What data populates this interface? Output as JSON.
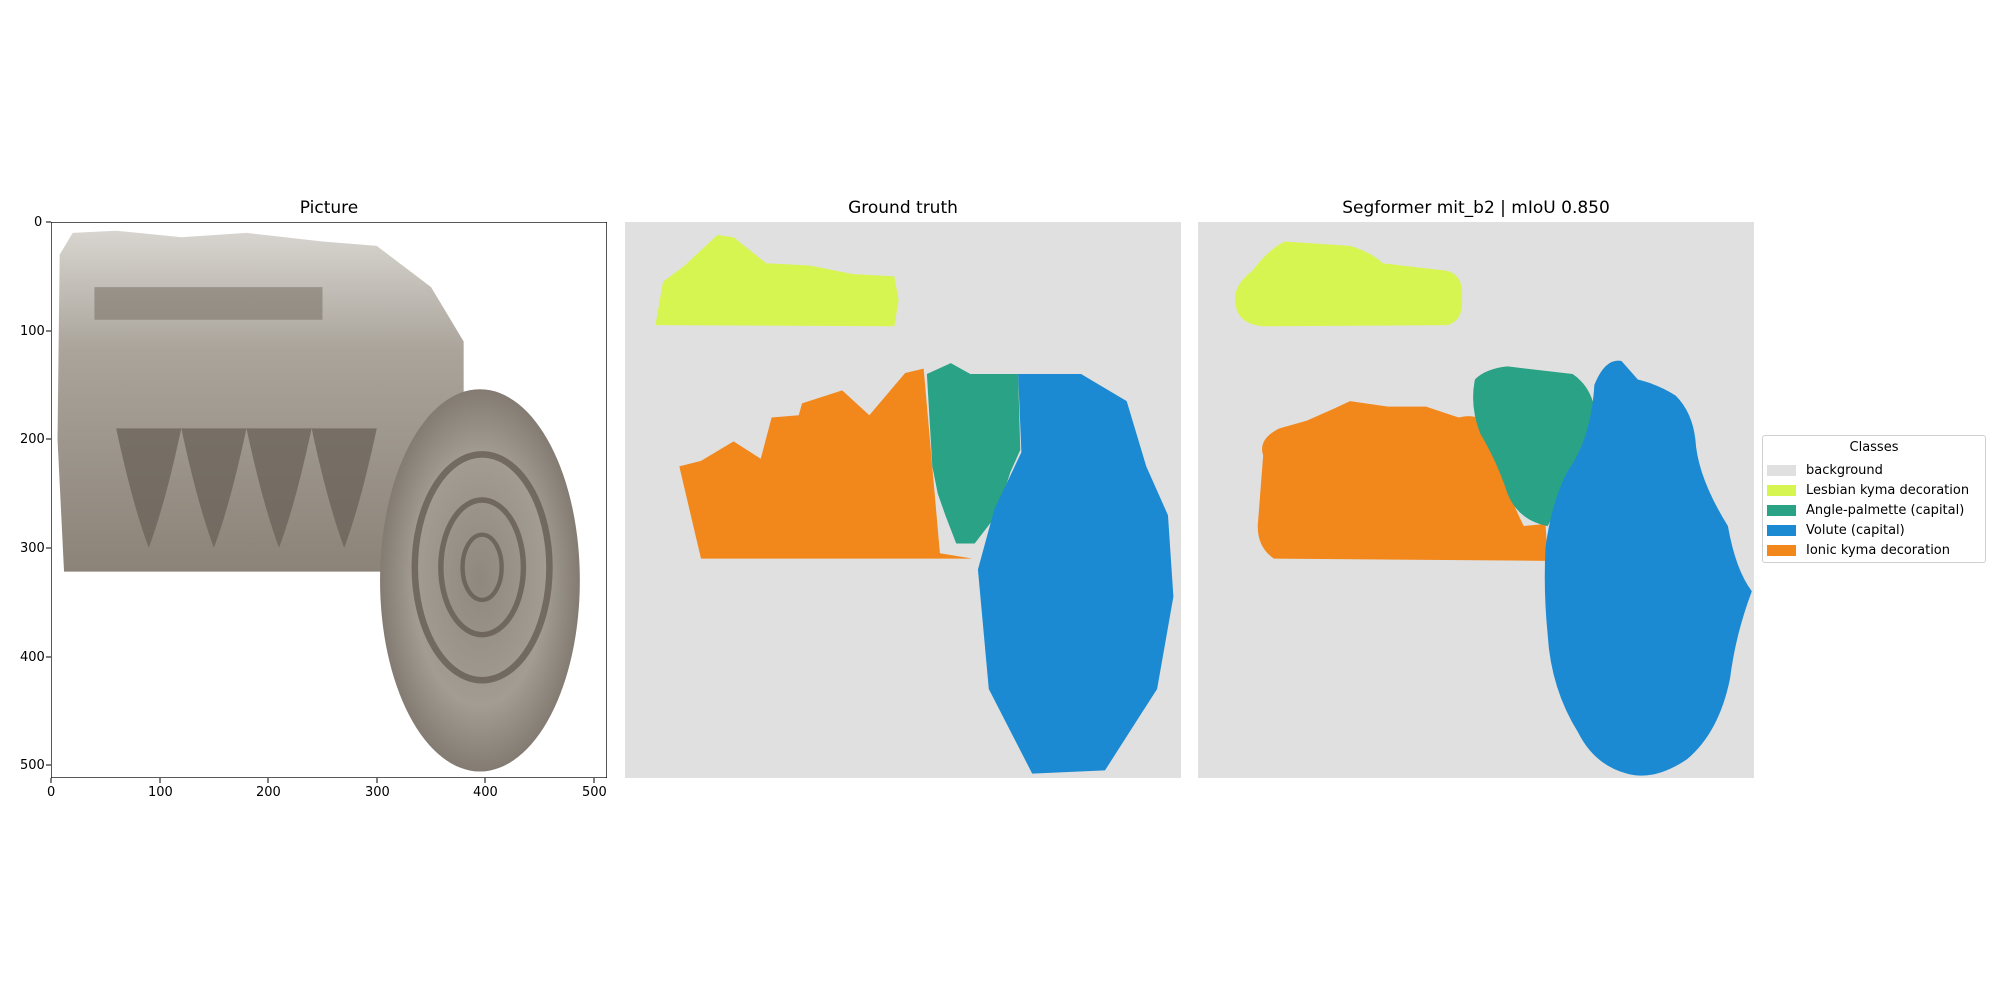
{
  "panels": {
    "picture": {
      "title": "Picture"
    },
    "ground_truth": {
      "title": "Ground truth"
    },
    "prediction": {
      "title": "Segformer mit_b2 | mIoU 0.850"
    }
  },
  "axes": {
    "y_ticks": [
      "0",
      "100",
      "200",
      "300",
      "400",
      "500"
    ],
    "x_ticks": [
      "0",
      "100",
      "200",
      "300",
      "400",
      "500"
    ],
    "range": [
      0,
      512
    ]
  },
  "legend": {
    "title": "Classes",
    "items": [
      {
        "label": "background",
        "color": "#e0e0e0"
      },
      {
        "label": "Lesbian kyma decoration",
        "color": "#d6f551"
      },
      {
        "label": "Angle-palmette (capital)",
        "color": "#2aa286"
      },
      {
        "label": "Volute (capital)",
        "color": "#1b8ad3"
      },
      {
        "label": "Ionic kyma decoration",
        "color": "#f2871b"
      }
    ]
  },
  "colors": {
    "stone_light": "#c9c5bd",
    "stone_mid": "#9a948a",
    "stone_dark": "#5c544a"
  }
}
